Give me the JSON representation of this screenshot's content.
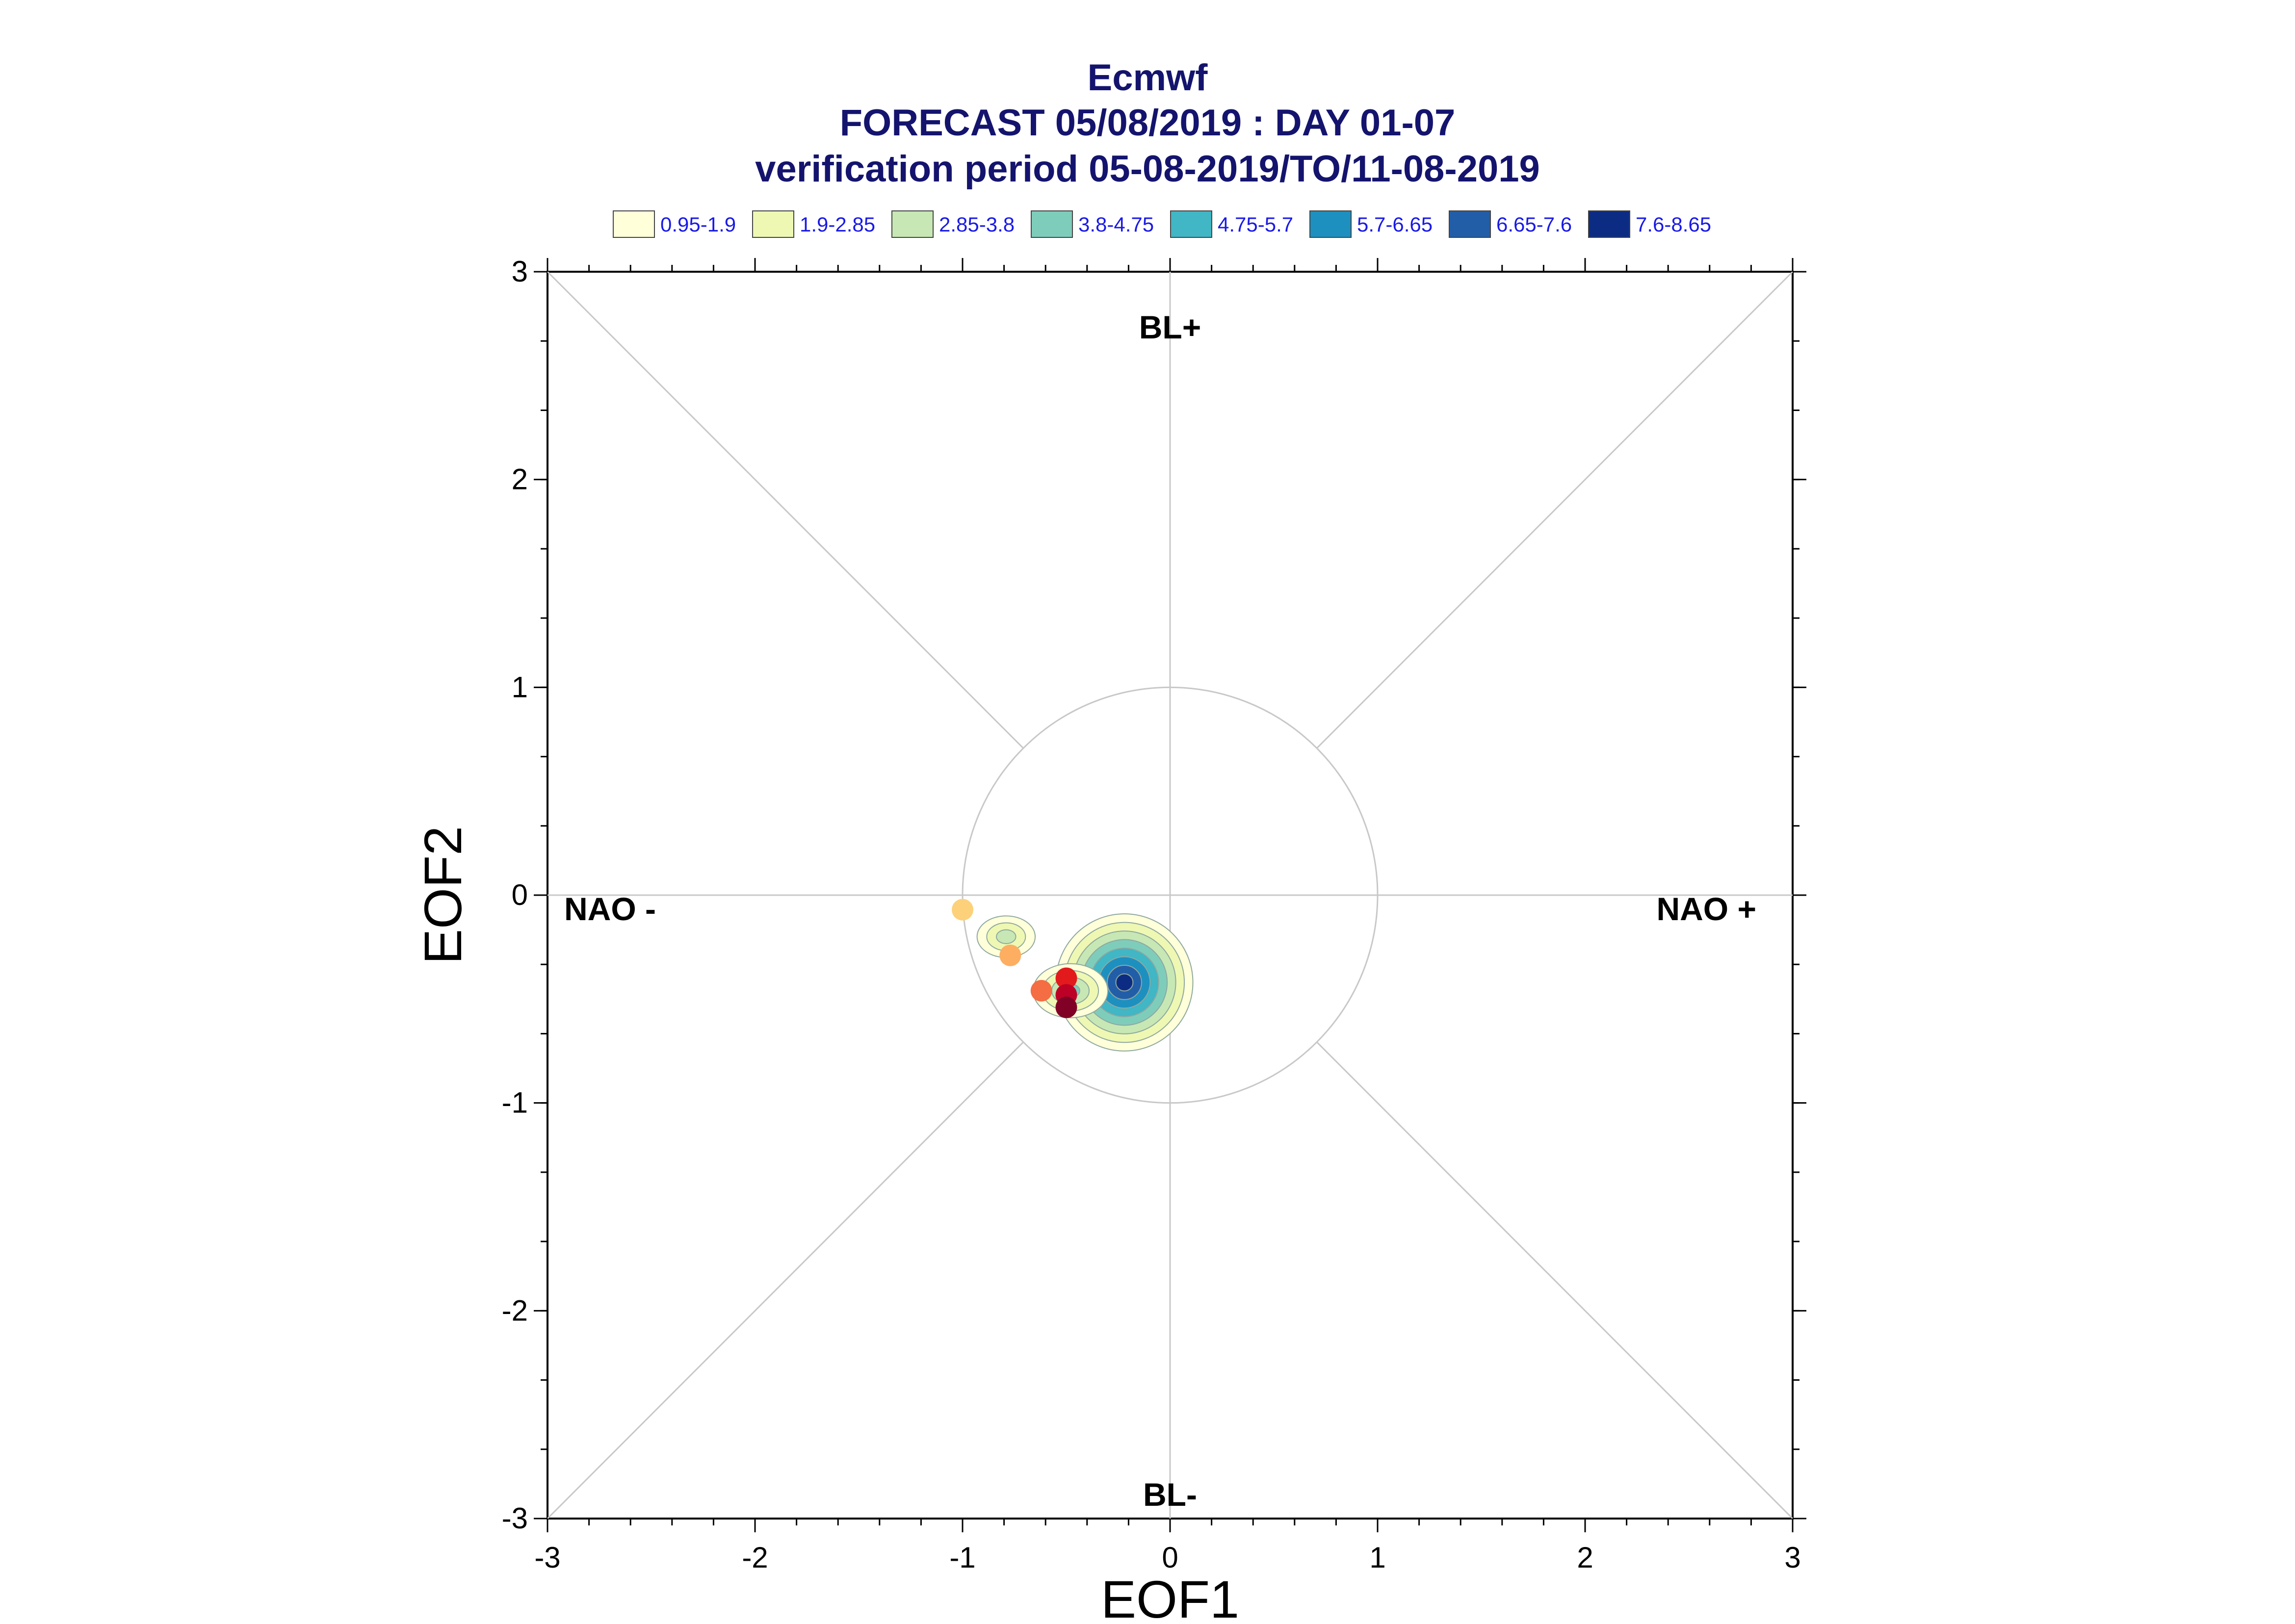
{
  "chart_data": {
    "type": "scatter",
    "title": "Ecmwf",
    "subtitle": "FORECAST 05/08/2019 : DAY 01-07",
    "period": "verification period 05-08-2019/TO/11-08-2019",
    "xlabel": "EOF1",
    "ylabel": "EOF2",
    "xlim": [
      -3,
      3
    ],
    "ylim": [
      -3,
      3
    ],
    "xticks": [
      "-3",
      "-2",
      "-1",
      "0",
      "1",
      "2",
      "3"
    ],
    "yticks": [
      "-3",
      "-2",
      "-1",
      "0",
      "1",
      "2",
      "3"
    ],
    "regions": {
      "top": "BL+",
      "bottom": "BL-",
      "left": "NAO -",
      "right": "NAO +"
    },
    "unit_circle_radius": 1,
    "legend": [
      {
        "label": "0.95-1.9",
        "color": "#ffffd9"
      },
      {
        "label": "1.9-2.85",
        "color": "#eef8b3"
      },
      {
        "label": "2.85-3.8",
        "color": "#c7e8b4"
      },
      {
        "label": "3.8-4.75",
        "color": "#7ecdbb"
      },
      {
        "label": "4.75-5.7",
        "color": "#41b6c4"
      },
      {
        "label": "5.7-6.65",
        "color": "#1d90c0"
      },
      {
        "label": "6.65-7.6",
        "color": "#225ea8"
      },
      {
        "label": "7.6-8.65",
        "color": "#0c2c84"
      }
    ],
    "density_blobs": [
      {
        "center": [
          -0.22,
          -0.42
        ],
        "r": [
          0.33,
          0.33
        ],
        "levels": 8
      },
      {
        "center": [
          -0.48,
          -0.46
        ],
        "r": [
          0.18,
          0.13
        ],
        "levels": 4
      },
      {
        "center": [
          -0.79,
          -0.2
        ],
        "r": [
          0.14,
          0.1
        ],
        "levels": 3
      }
    ],
    "points": [
      {
        "x": -1.0,
        "y": -0.07,
        "color": "#fdd17a"
      },
      {
        "x": -0.77,
        "y": -0.29,
        "color": "#fdae61"
      },
      {
        "x": -0.62,
        "y": -0.46,
        "color": "#f46d43"
      },
      {
        "x": -0.5,
        "y": -0.4,
        "color": "#e31a1c"
      },
      {
        "x": -0.5,
        "y": -0.48,
        "color": "#bd0026"
      },
      {
        "x": -0.5,
        "y": -0.54,
        "color": "#800026"
      }
    ]
  }
}
